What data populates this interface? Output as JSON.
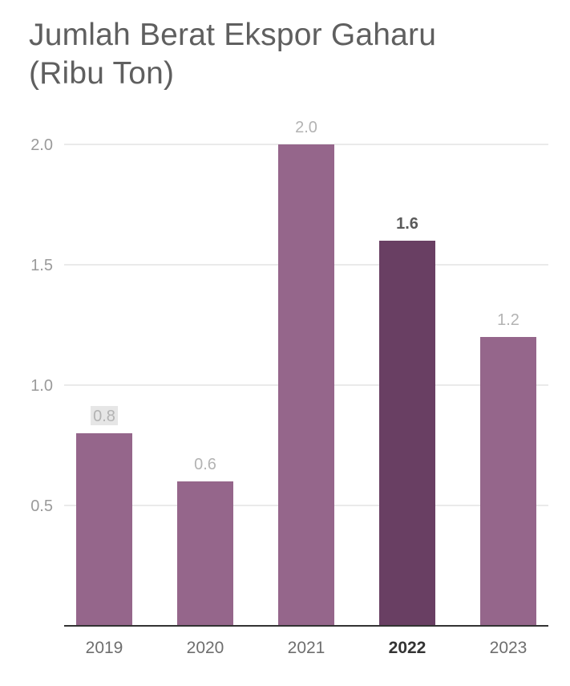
{
  "chart_data": {
    "type": "bar",
    "title_line1": "Jumlah Berat Ekspor Gaharu",
    "title_line2": "(Ribu Ton)",
    "categories": [
      "2019",
      "2020",
      "2021",
      "2022",
      "2023"
    ],
    "values": [
      0.8,
      0.6,
      2.0,
      1.6,
      1.2
    ],
    "value_labels": [
      "0.8",
      "0.6",
      "2.0",
      "1.6",
      "1.2"
    ],
    "y_ticks": [
      "0.5",
      "1.0",
      "1.5",
      "2.0"
    ],
    "y_tick_values": [
      0.5,
      1.0,
      1.5,
      2.0
    ],
    "ylim": [
      0,
      2.0
    ],
    "highlight_category": "2022",
    "grid": true,
    "colors": {
      "bar": "#95668b",
      "bar_highlight": "#693f63",
      "grid": "#e3e3e3",
      "axis": "#333333"
    }
  }
}
